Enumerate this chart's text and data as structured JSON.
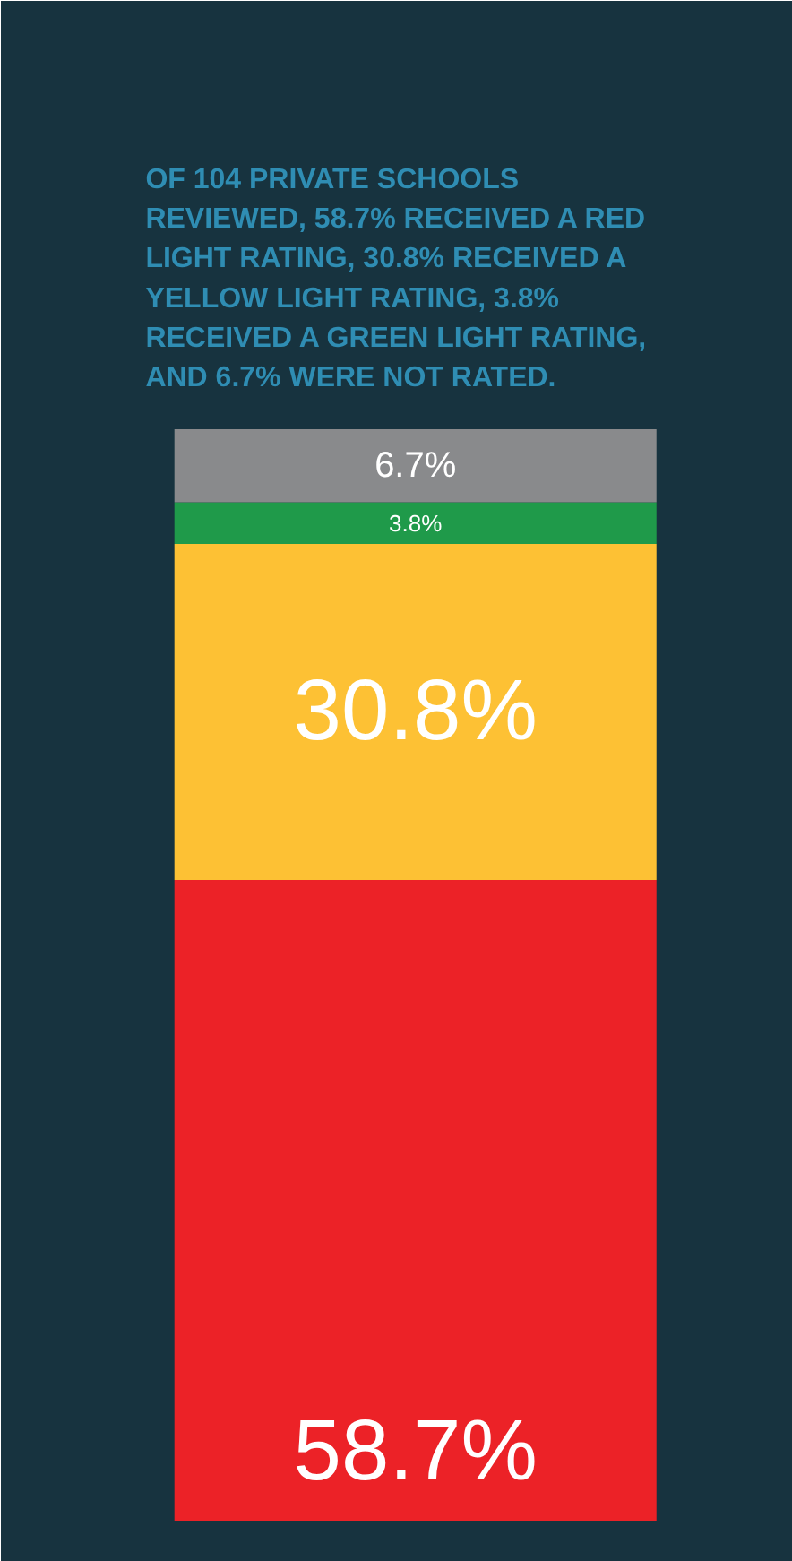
{
  "chart_data": {
    "type": "bar",
    "stacked": true,
    "title": "OF 104 PRIVATE SCHOOLS REVIEWED, 58.7% RECEIVED A RED LIGHT RATING, 30.8% RECEIVED A YELLOW LIGHT RATING, 3.8% RECEIVED A GREEN LIGHT RATING, AND 6.7% WERE NOT RATED.",
    "categories": [
      null
    ],
    "series": [
      {
        "color": "#ec2227",
        "values": [
          58.7
        ],
        "value_labels": [
          "58.7%"
        ]
      },
      {
        "color": "#fdc134",
        "values": [
          30.8
        ],
        "value_labels": [
          "30.8%"
        ]
      },
      {
        "color": "#1f9a4a",
        "values": [
          3.8
        ],
        "value_labels": [
          "3.8%"
        ]
      },
      {
        "color": "#898a8c",
        "values": [
          6.7
        ],
        "value_labels": [
          "6.7%"
        ]
      }
    ],
    "ylim": [
      0,
      100
    ],
    "tick_labels": false,
    "grid": false
  }
}
